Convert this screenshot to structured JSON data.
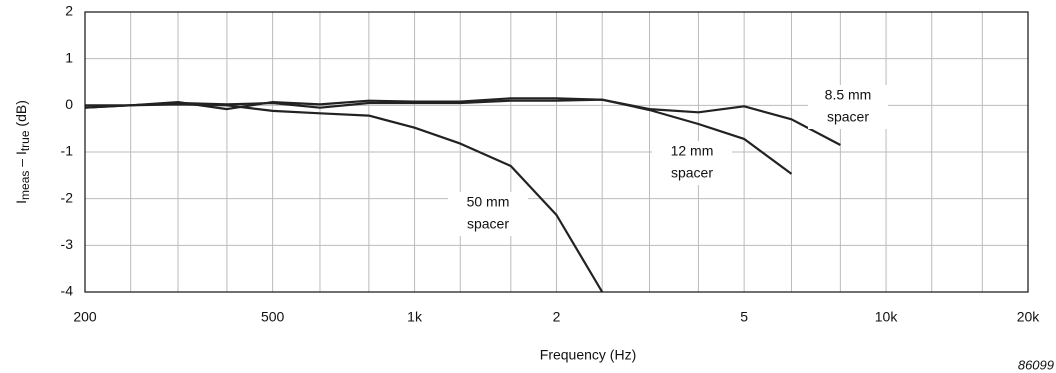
{
  "chart_data": {
    "type": "line",
    "ylabel_parts": [
      "I",
      "meas",
      " – I",
      "true",
      " (dB)"
    ],
    "xlabel": "Frequency   (Hz)",
    "figure_id": "86099",
    "log_x": true,
    "grid": true,
    "color": "#222222",
    "xlim": [
      200,
      20000
    ],
    "ylim": [
      -4,
      2
    ],
    "xticks": [
      200,
      500,
      {
        "value": 1000,
        "label": "1k"
      },
      {
        "value": 2000,
        "label": "2"
      },
      {
        "value": 5000,
        "label": "5"
      },
      {
        "value": 10000,
        "label": "10k"
      },
      {
        "value": 20000,
        "label": "20k"
      }
    ],
    "x_minor_ticks": [
      250,
      315,
      400,
      630,
      800,
      1250,
      1600,
      2500,
      3150,
      4000,
      6300,
      8000,
      12500,
      16000
    ],
    "yticks": [
      -4,
      -3,
      -2,
      -1,
      0,
      1,
      2
    ],
    "series": [
      {
        "name": [
          "8.5 mm",
          "spacer"
        ],
        "x": [
          200,
          250,
          315,
          400,
          500,
          630,
          800,
          1000,
          1250,
          1600,
          2000,
          2500,
          3150,
          4000,
          5000,
          6300,
          8000
        ],
        "values": [
          0,
          0,
          0.07,
          -0.08,
          0.07,
          0.02,
          0.1,
          0.08,
          0.08,
          0.15,
          0.15,
          0.12,
          -0.08,
          -0.15,
          -0.02,
          -0.3,
          -0.85
        ]
      },
      {
        "name": [
          "12 mm",
          "spacer"
        ],
        "x": [
          200,
          250,
          315,
          400,
          500,
          630,
          800,
          1000,
          1250,
          1600,
          2000,
          2500,
          3150,
          4000,
          5000,
          6300
        ],
        "values": [
          -0.05,
          0,
          0.05,
          0.02,
          0.05,
          -0.05,
          0.05,
          0.05,
          0.05,
          0.1,
          0.1,
          0.12,
          -0.1,
          -0.4,
          -0.72,
          -1.47
        ]
      },
      {
        "name": [
          "50 mm",
          "spacer"
        ],
        "x": [
          200,
          250,
          315,
          400,
          500,
          630,
          800,
          1000,
          1250,
          1600,
          2000,
          2500
        ],
        "values": [
          -0.05,
          0,
          0.02,
          0,
          -0.12,
          -0.17,
          -0.22,
          -0.48,
          -0.82,
          -1.3,
          -2.35,
          -4
        ]
      }
    ]
  }
}
